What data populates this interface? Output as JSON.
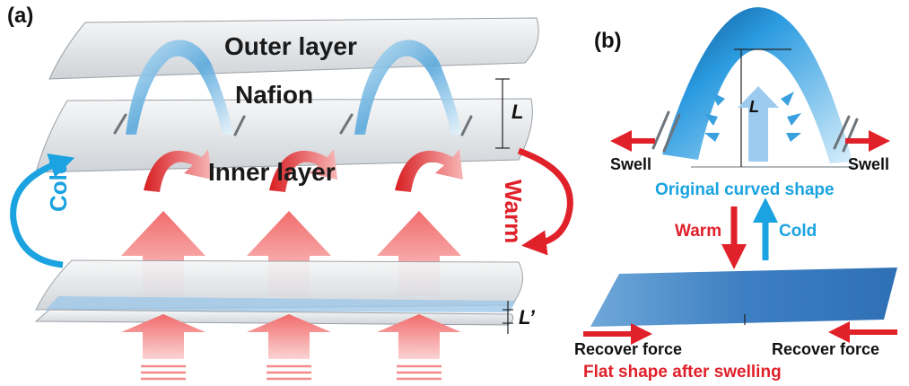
{
  "panel_a": {
    "tag": "(a)",
    "outer_layer": "Outer layer",
    "nafion": "Nafion",
    "inner_layer": "Inner layer",
    "thickness_top": "L",
    "thickness_bottom": "L’",
    "cold": "Cold",
    "warm": "Warm"
  },
  "panel_b": {
    "tag": "(b)",
    "thickness": "L",
    "swell_left": "Swell",
    "swell_right": "Swell",
    "original_shape": "Original curved shape",
    "warm": "Warm",
    "cold": "Cold",
    "recover_left": "Recover force",
    "recover_right": "Recover force",
    "flat_shape": "Flat shape after swelling"
  },
  "colors": {
    "red_arrow": "#e0212a",
    "blue_arrow": "#1aa3e0",
    "sheet": "#e6e8ea",
    "nafion_blue": "#5aa9dc"
  }
}
